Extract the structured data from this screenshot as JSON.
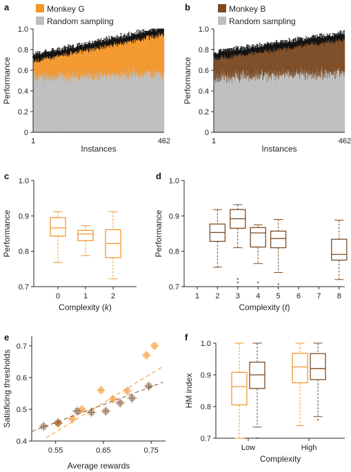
{
  "colors": {
    "monkey_g": "#f4962a",
    "monkey_b": "#7b4a22",
    "random": "#bdbdbd",
    "error": "#111111"
  },
  "chart_data": [
    {
      "id": "a",
      "letter": "a",
      "type": "bar",
      "legend": [
        "Monkey G",
        "Random sampling"
      ],
      "xlabel": "Instances",
      "ylabel": "Performance",
      "xticks": [
        "1",
        "462"
      ],
      "yticks": [
        "0",
        "0.2",
        "0.4",
        "0.6",
        "0.8",
        "1.0"
      ],
      "ylim": [
        0,
        1.0
      ],
      "n_instances": 462,
      "series": [
        {
          "name": "Monkey G",
          "start": 0.72,
          "end": 0.98
        },
        {
          "name": "Random sampling",
          "start": 0.6,
          "end": 0.64
        }
      ]
    },
    {
      "id": "b",
      "letter": "b",
      "type": "bar",
      "legend": [
        "Monkey B",
        "Random sampling"
      ],
      "xlabel": "Instances",
      "ylabel": "Performance",
      "xticks": [
        "1",
        "462"
      ],
      "yticks": [
        "0",
        "0.2",
        "0.4",
        "0.6",
        "0.8",
        "1.0"
      ],
      "ylim": [
        0,
        1.0
      ],
      "n_instances": 462,
      "series": [
        {
          "name": "Monkey B",
          "start": 0.74,
          "end": 0.93
        },
        {
          "name": "Random sampling",
          "start": 0.6,
          "end": 0.64
        }
      ]
    },
    {
      "id": "c",
      "letter": "c",
      "type": "box",
      "xlabel": "Complexity (k)",
      "ylabel": "Performance",
      "categories": [
        "0",
        "1",
        "2"
      ],
      "yticks": [
        "0.7",
        "0.8",
        "0.9",
        "1.0"
      ],
      "ylim": [
        0.7,
        1.0
      ],
      "boxes": [
        {
          "cat": "0",
          "min": 0.768,
          "q1": 0.843,
          "med": 0.866,
          "q3": 0.895,
          "max": 0.912
        },
        {
          "cat": "1",
          "min": 0.788,
          "q1": 0.83,
          "med": 0.849,
          "q3": 0.859,
          "max": 0.872
        },
        {
          "cat": "2",
          "min": 0.722,
          "q1": 0.782,
          "med": 0.822,
          "q3": 0.861,
          "max": 0.912
        }
      ]
    },
    {
      "id": "d",
      "letter": "d",
      "type": "box",
      "xlabel": "Complexity (t)",
      "ylabel": "Performance",
      "categories": [
        "1",
        "2",
        "3",
        "4",
        "5",
        "6",
        "7",
        "8"
      ],
      "yticks": [
        "0.7",
        "0.8",
        "0.9",
        "1.0"
      ],
      "ylim": [
        0.7,
        1.0
      ],
      "boxes": [
        {
          "cat": "2",
          "min": 0.755,
          "q1": 0.828,
          "med": 0.853,
          "q3": 0.877,
          "max": 0.918,
          "outliers": []
        },
        {
          "cat": "3",
          "min": 0.81,
          "q1": 0.865,
          "med": 0.892,
          "q3": 0.918,
          "max": 0.932,
          "outliers": [
            0.722,
            0.712,
            0.7
          ]
        },
        {
          "cat": "4",
          "min": 0.765,
          "q1": 0.812,
          "med": 0.852,
          "q3": 0.867,
          "max": 0.875,
          "outliers": [
            0.712
          ]
        },
        {
          "cat": "5",
          "min": 0.74,
          "q1": 0.81,
          "med": 0.836,
          "q3": 0.857,
          "max": 0.89,
          "outliers": [
            0.707
          ]
        },
        {
          "cat": "8",
          "min": 0.72,
          "q1": 0.775,
          "med": 0.791,
          "q3": 0.834,
          "max": 0.888,
          "outliers": []
        }
      ]
    },
    {
      "id": "e",
      "letter": "e",
      "type": "scatter",
      "xlabel": "Average rewards",
      "ylabel": "Satisficing thresholds",
      "xticks": [
        "0.55",
        "0.65",
        "0.75"
      ],
      "yticks": [
        "0.4",
        "0.5",
        "0.6",
        "0.7"
      ],
      "xlim": [
        0.5,
        0.78
      ],
      "ylim": [
        0.4,
        0.73
      ],
      "series": [
        {
          "name": "Monkey G",
          "points": [
            [
              0.555,
              0.455
            ],
            [
              0.585,
              0.47
            ],
            [
              0.605,
              0.5
            ],
            [
              0.645,
              0.56
            ],
            [
              0.67,
              0.532
            ],
            [
              0.7,
              0.558
            ],
            [
              0.74,
              0.67
            ],
            [
              0.757,
              0.7
            ]
          ],
          "fit": [
            [
              0.53,
              0.41
            ],
            [
              0.775,
              0.635
            ]
          ]
        },
        {
          "name": "Monkey B",
          "points": [
            [
              0.525,
              0.446
            ],
            [
              0.555,
              0.458
            ],
            [
              0.595,
              0.494
            ],
            [
              0.625,
              0.49
            ],
            [
              0.655,
              0.494
            ],
            [
              0.685,
              0.52
            ],
            [
              0.71,
              0.535
            ],
            [
              0.745,
              0.573
            ]
          ],
          "fit": [
            [
              0.5,
              0.43
            ],
            [
              0.775,
              0.585
            ]
          ]
        }
      ]
    },
    {
      "id": "f",
      "letter": "f",
      "type": "box",
      "xlabel": "Complexity",
      "ylabel": "HM index",
      "categories": [
        "Low",
        "High"
      ],
      "yticks": [
        "0.7",
        "0.8",
        "0.9",
        "1.0"
      ],
      "ylim": [
        0.7,
        1.0
      ],
      "boxes": [
        {
          "cat": "Low",
          "series": "Monkey G",
          "min": 0.7,
          "q1": 0.805,
          "med": 0.863,
          "q3": 0.908,
          "max": 1.0,
          "outliers": []
        },
        {
          "cat": "Low",
          "series": "Monkey B",
          "min": 0.735,
          "q1": 0.857,
          "med": 0.9,
          "q3": 0.94,
          "max": 1.0,
          "outliers": [
            0.7
          ]
        },
        {
          "cat": "High",
          "series": "Monkey G",
          "min": 0.74,
          "q1": 0.875,
          "med": 0.925,
          "q3": 0.968,
          "max": 1.0,
          "outliers": []
        },
        {
          "cat": "High",
          "series": "Monkey B",
          "min": 0.768,
          "q1": 0.885,
          "med": 0.92,
          "q3": 0.967,
          "max": 1.0,
          "outliers": [
            0.758
          ]
        }
      ]
    }
  ]
}
